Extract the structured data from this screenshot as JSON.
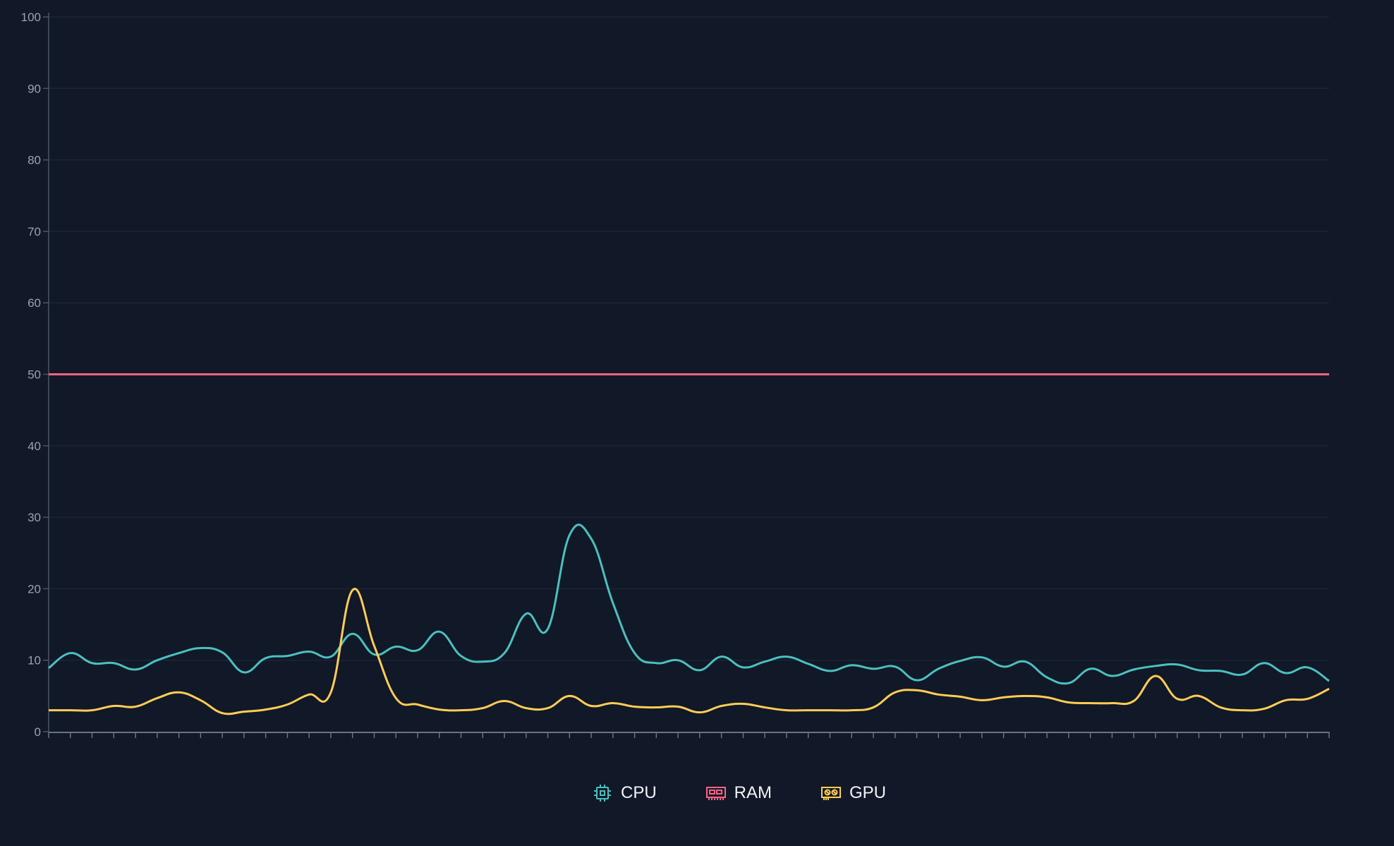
{
  "chart_data": {
    "type": "line",
    "title": "",
    "xlabel": "",
    "ylabel": "",
    "ylim": [
      0,
      100
    ],
    "yticks": [
      "0",
      "10",
      "20",
      "30",
      "40",
      "50",
      "60",
      "70",
      "80",
      "90",
      "100"
    ],
    "grid": true,
    "legend_position": "bottom",
    "point_count": 60,
    "series": [
      {
        "name": "CPU",
        "icon": "cpu-icon",
        "color": "#4bc0c0",
        "values": [
          8.9,
          11.0,
          9.6,
          9.6,
          8.7,
          10.0,
          11.0,
          11.7,
          11.1,
          8.3,
          10.3,
          10.6,
          11.2,
          10.5,
          13.7,
          10.8,
          11.9,
          11.4,
          14.0,
          10.6,
          9.8,
          11.0,
          16.5,
          14.4,
          27.5,
          27.0,
          18.0,
          11.0,
          9.6,
          10.0,
          8.6,
          10.5,
          9.0,
          9.8,
          10.5,
          9.5,
          8.5,
          9.3,
          8.8,
          9.1,
          7.2,
          8.8,
          9.9,
          10.4,
          9.1,
          9.8,
          7.6,
          6.8,
          8.8,
          7.8,
          8.7,
          9.2,
          9.4,
          8.6,
          8.5,
          8.0,
          9.6,
          8.2,
          9.0,
          7.1
        ]
      },
      {
        "name": "RAM",
        "icon": "memory-icon",
        "color": "#ff6384",
        "values": [
          50,
          50,
          50,
          50,
          50,
          50,
          50,
          50,
          50,
          50,
          50,
          50,
          50,
          50,
          50,
          50,
          50,
          50,
          50,
          50,
          50,
          50,
          50,
          50,
          50,
          50,
          50,
          50,
          50,
          50,
          50,
          50,
          50,
          50,
          50,
          50,
          50,
          50,
          50,
          50,
          50,
          50,
          50,
          50,
          50,
          50,
          50,
          50,
          50,
          50,
          50,
          50,
          50,
          50,
          50,
          50,
          50,
          50,
          50,
          50
        ]
      },
      {
        "name": "GPU",
        "icon": "gpu-icon",
        "color": "#ffcd56",
        "values": [
          3.0,
          3.0,
          3.0,
          3.6,
          3.5,
          4.7,
          5.5,
          4.4,
          2.6,
          2.8,
          3.1,
          3.8,
          5.2,
          5.5,
          19.8,
          12.0,
          4.7,
          3.8,
          3.1,
          3.0,
          3.3,
          4.3,
          3.3,
          3.3,
          5.0,
          3.6,
          4.0,
          3.5,
          3.4,
          3.5,
          2.7,
          3.6,
          3.9,
          3.4,
          3.0,
          3.0,
          3.0,
          3.0,
          3.4,
          5.5,
          5.8,
          5.2,
          4.9,
          4.4,
          4.8,
          5.0,
          4.8,
          4.1,
          4.0,
          4.0,
          4.3,
          7.8,
          4.6,
          5.0,
          3.4,
          3.0,
          3.2,
          4.4,
          4.6,
          6.0
        ]
      }
    ]
  }
}
